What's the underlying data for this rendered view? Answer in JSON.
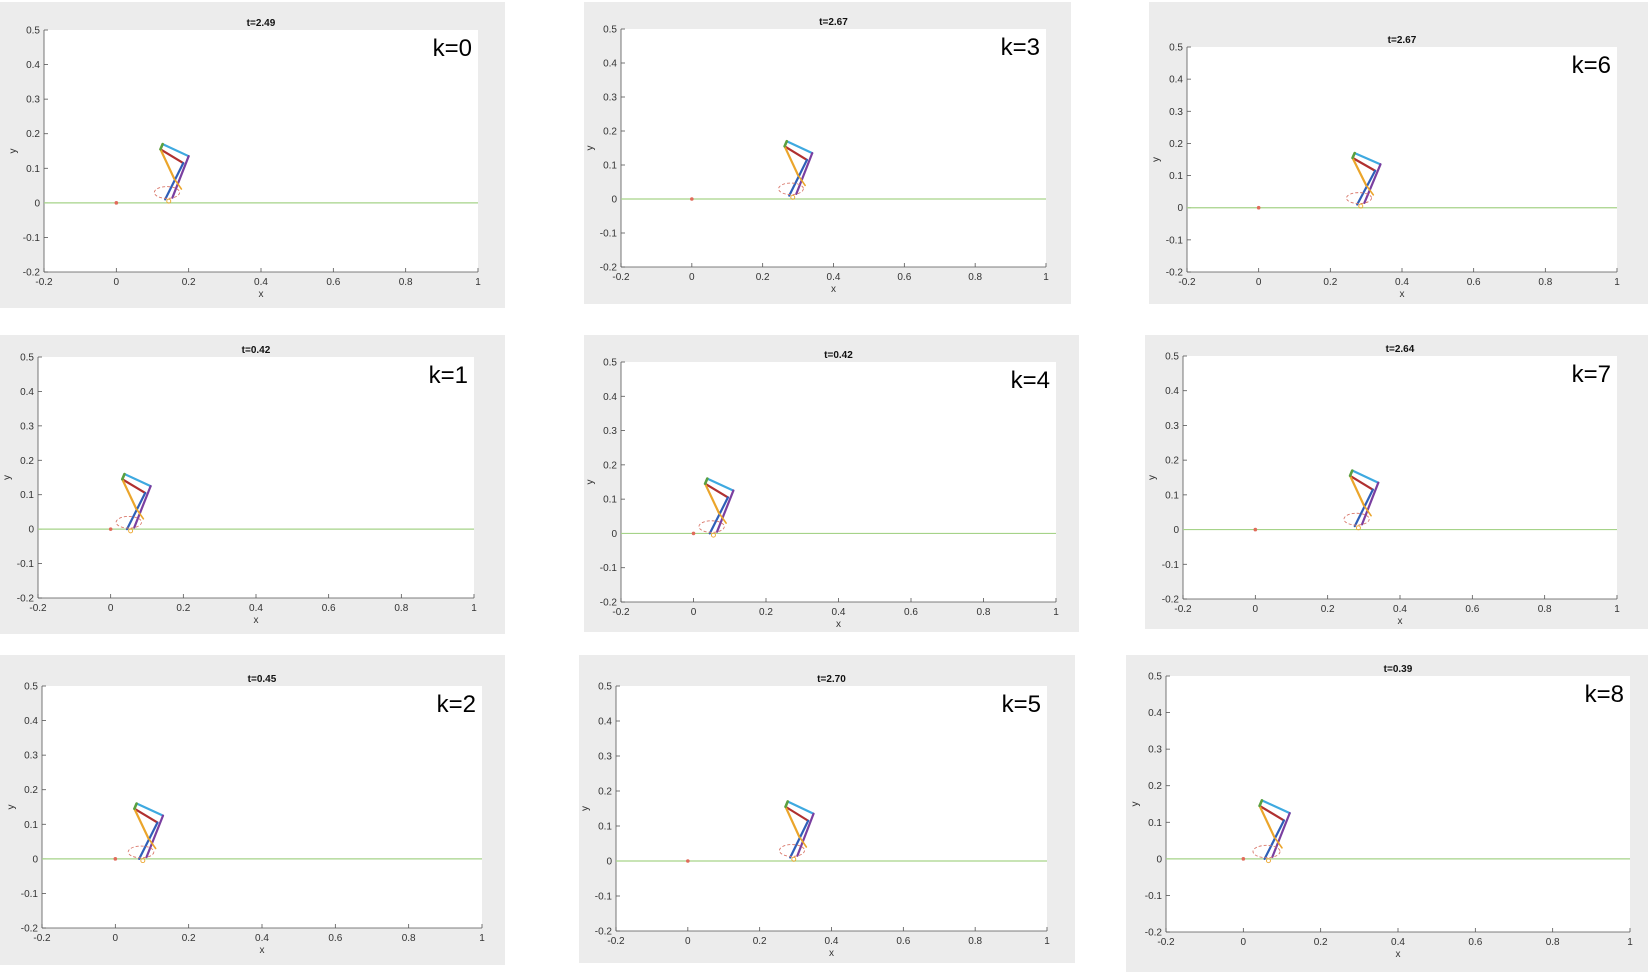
{
  "chart_data": [
    {
      "type": "line",
      "label": "k=0",
      "title": "t=2.49",
      "xlabel": "x",
      "ylabel": "y",
      "xlim": [
        -0.2,
        1
      ],
      "ylim": [
        -0.2,
        0.5
      ],
      "xticks": [
        "-0.2",
        "0",
        "0.2",
        "0.4",
        "0.6",
        "0.8",
        "1"
      ],
      "yticks": [
        "-0.2",
        "-0.1",
        "0",
        "0.1",
        "0.2",
        "0.3",
        "0.4",
        "0.5"
      ],
      "ground_y": 0,
      "origin_marker": [
        0,
        0
      ],
      "robot_base": [
        0.14,
        0.01
      ],
      "grid": false
    },
    {
      "type": "line",
      "label": "k=3",
      "title": "t=2.67",
      "xlabel": "x",
      "ylabel": "y",
      "xlim": [
        -0.2,
        1
      ],
      "ylim": [
        -0.2,
        0.5
      ],
      "xticks": [
        "-0.2",
        "0",
        "0.2",
        "0.4",
        "0.6",
        "0.8",
        "1"
      ],
      "yticks": [
        "-0.2",
        "-0.1",
        "0",
        "0.1",
        "0.2",
        "0.3",
        "0.4",
        "0.5"
      ],
      "ground_y": 0,
      "origin_marker": [
        0,
        0
      ],
      "robot_base": [
        0.28,
        0.01
      ],
      "grid": false
    },
    {
      "type": "line",
      "label": "k=6",
      "title": "t=2.67",
      "xlabel": "x",
      "ylabel": "y",
      "xlim": [
        -0.2,
        1
      ],
      "ylim": [
        -0.2,
        0.5
      ],
      "xticks": [
        "-0.2",
        "0",
        "0.2",
        "0.4",
        "0.6",
        "0.8",
        "1"
      ],
      "yticks": [
        "-0.2",
        "-0.1",
        "0",
        "0.1",
        "0.2",
        "0.3",
        "0.4",
        "0.5"
      ],
      "ground_y": 0,
      "origin_marker": [
        0,
        0
      ],
      "robot_base": [
        0.28,
        0.01
      ],
      "grid": false
    },
    {
      "type": "line",
      "label": "k=1",
      "title": "t=0.42",
      "xlabel": "x",
      "ylabel": "y",
      "xlim": [
        -0.2,
        1
      ],
      "ylim": [
        -0.2,
        0.5
      ],
      "xticks": [
        "-0.2",
        "0",
        "0.2",
        "0.4",
        "0.6",
        "0.8",
        "1"
      ],
      "yticks": [
        "-0.2",
        "-0.1",
        "0",
        "0.1",
        "0.2",
        "0.3",
        "0.4",
        "0.5"
      ],
      "ground_y": 0,
      "origin_marker": [
        0,
        0
      ],
      "robot_base": [
        0.05,
        0.0
      ],
      "grid": false
    },
    {
      "type": "line",
      "label": "k=4",
      "title": "t=0.42",
      "xlabel": "x",
      "ylabel": "y",
      "xlim": [
        -0.2,
        1
      ],
      "ylim": [
        -0.2,
        0.5
      ],
      "xticks": [
        "-0.2",
        "0",
        "0.2",
        "0.4",
        "0.6",
        "0.8",
        "1"
      ],
      "yticks": [
        "-0.2",
        "-0.1",
        "0",
        "0.1",
        "0.2",
        "0.3",
        "0.4",
        "0.5"
      ],
      "ground_y": 0,
      "origin_marker": [
        0,
        0
      ],
      "robot_base": [
        0.05,
        0.0
      ],
      "grid": false
    },
    {
      "type": "line",
      "label": "k=7",
      "title": "t=2.64",
      "xlabel": "x",
      "ylabel": "y",
      "xlim": [
        -0.2,
        1
      ],
      "ylim": [
        -0.2,
        0.5
      ],
      "xticks": [
        "-0.2",
        "0",
        "0.2",
        "0.4",
        "0.6",
        "0.8",
        "1"
      ],
      "yticks": [
        "-0.2",
        "-0.1",
        "0",
        "0.1",
        "0.2",
        "0.3",
        "0.4",
        "0.5"
      ],
      "ground_y": 0,
      "origin_marker": [
        0,
        0
      ],
      "robot_base": [
        0.28,
        0.01
      ],
      "grid": false
    },
    {
      "type": "line",
      "label": "k=2",
      "title": "t=0.45",
      "xlabel": "x",
      "ylabel": "y",
      "xlim": [
        -0.2,
        1
      ],
      "ylim": [
        -0.2,
        0.5
      ],
      "xticks": [
        "-0.2",
        "0",
        "0.2",
        "0.4",
        "0.6",
        "0.8",
        "1"
      ],
      "yticks": [
        "-0.2",
        "-0.1",
        "0",
        "0.1",
        "0.2",
        "0.3",
        "0.4",
        "0.5"
      ],
      "ground_y": 0,
      "origin_marker": [
        0,
        0
      ],
      "robot_base": [
        0.07,
        0.0
      ],
      "grid": false
    },
    {
      "type": "line",
      "label": "k=5",
      "title": "t=2.70",
      "xlabel": "x",
      "ylabel": "y",
      "xlim": [
        -0.2,
        1
      ],
      "ylim": [
        -0.2,
        0.5
      ],
      "xticks": [
        "-0.2",
        "0",
        "0.2",
        "0.4",
        "0.6",
        "0.8",
        "1"
      ],
      "yticks": [
        "-0.2",
        "-0.1",
        "0",
        "0.1",
        "0.2",
        "0.3",
        "0.4",
        "0.5"
      ],
      "ground_y": 0,
      "origin_marker": [
        0,
        0
      ],
      "robot_base": [
        0.29,
        0.01
      ],
      "grid": false
    },
    {
      "type": "line",
      "label": "k=8",
      "title": "t=0.39",
      "xlabel": "x",
      "ylabel": "y",
      "xlim": [
        -0.2,
        1
      ],
      "ylim": [
        -0.2,
        0.5
      ],
      "xticks": [
        "-0.2",
        "0",
        "0.2",
        "0.4",
        "0.6",
        "0.8",
        "1"
      ],
      "yticks": [
        "-0.2",
        "-0.1",
        "0",
        "0.1",
        "0.2",
        "0.3",
        "0.4",
        "0.5"
      ],
      "ground_y": 0,
      "origin_marker": [
        0,
        0
      ],
      "robot_base": [
        0.06,
        0.0
      ],
      "grid": false
    }
  ],
  "colors": {
    "ground": "#a6d389",
    "origin": "#e06b5a",
    "link_cyan": "#3ea9e0",
    "link_red": "#b03030",
    "link_orange": "#eba52b",
    "link_purple": "#7a3fa0",
    "link_blue": "#2f5fb8",
    "link_green": "#5aa040",
    "foot_circle": "#d9776a"
  }
}
